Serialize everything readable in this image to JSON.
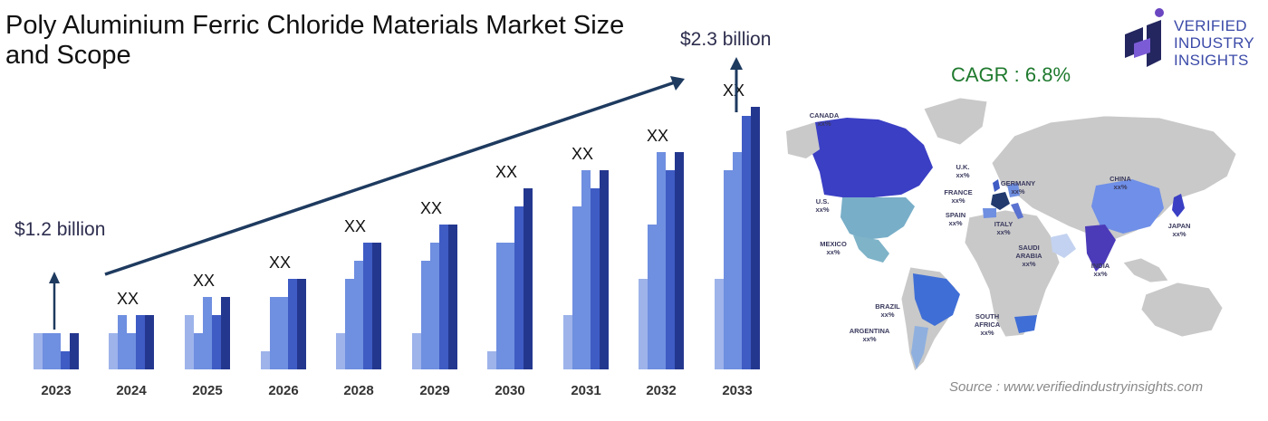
{
  "title": "Poly Aluminium Ferric Chloride Materials Market Size and Scope",
  "logo": {
    "line1": "VERIFIED",
    "line2": "INDUSTRY",
    "line3": "INSIGHTS"
  },
  "cagr": "CAGR : 6.8%",
  "source": "Source : www.verifiedindustryinsights.com",
  "colors": {
    "light": "#9db3ea",
    "mid": "#6f8fe0",
    "dark": "#3f5cc4",
    "darkest": "#24378f",
    "arrow": "#1e3a5f",
    "text_dark": "#2d2d4e"
  },
  "chart_data": {
    "type": "bar",
    "title": "Poly Aluminium Ferric Chloride Materials Market Size and Scope",
    "categories": [
      "2023",
      "2024",
      "2025",
      "2026",
      "2028",
      "2029",
      "2030",
      "2031",
      "2032",
      "2033"
    ],
    "bar_labels": [
      "",
      "XX",
      "XX",
      "XX",
      "XX",
      "XX",
      "XX",
      "XX",
      "XX",
      "XX"
    ],
    "start_value_label": "$1.2 billion",
    "end_value_label": "$2.3 billion",
    "start_value": 1.2,
    "end_value": 2.3,
    "unit": "USD billion",
    "cagr": 6.8,
    "groups": [
      [
        2,
        2,
        2,
        1,
        2
      ],
      [
        2,
        3,
        2,
        3,
        3
      ],
      [
        3,
        2,
        4,
        3,
        4
      ],
      [
        1,
        4,
        4,
        5,
        5
      ],
      [
        2,
        5,
        6,
        7,
        7
      ],
      [
        2,
        6,
        7,
        8,
        8
      ],
      [
        1,
        7,
        7,
        9,
        10
      ],
      [
        3,
        9,
        11,
        10,
        11
      ],
      [
        5,
        8,
        12,
        11,
        12
      ],
      [
        5,
        11,
        12,
        14,
        14.5
      ]
    ],
    "ylim": [
      0,
      15
    ]
  },
  "map": {
    "regions": [
      {
        "name": "CANADA",
        "value": "xx%"
      },
      {
        "name": "U.S.",
        "value": "xx%"
      },
      {
        "name": "MEXICO",
        "value": "xx%"
      },
      {
        "name": "BRAZIL",
        "value": "xx%"
      },
      {
        "name": "ARGENTINA",
        "value": "xx%"
      },
      {
        "name": "U.K.",
        "value": "xx%"
      },
      {
        "name": "FRANCE",
        "value": "xx%"
      },
      {
        "name": "SPAIN",
        "value": "xx%"
      },
      {
        "name": "GERMANY",
        "value": "xx%"
      },
      {
        "name": "ITALY",
        "value": "xx%"
      },
      {
        "name": "SAUDI ARABIA",
        "value": "xx%"
      },
      {
        "name": "SOUTH AFRICA",
        "value": "xx%"
      },
      {
        "name": "CHINA",
        "value": "xx%"
      },
      {
        "name": "INDIA",
        "value": "xx%"
      },
      {
        "name": "JAPAN",
        "value": "xx%"
      }
    ]
  }
}
